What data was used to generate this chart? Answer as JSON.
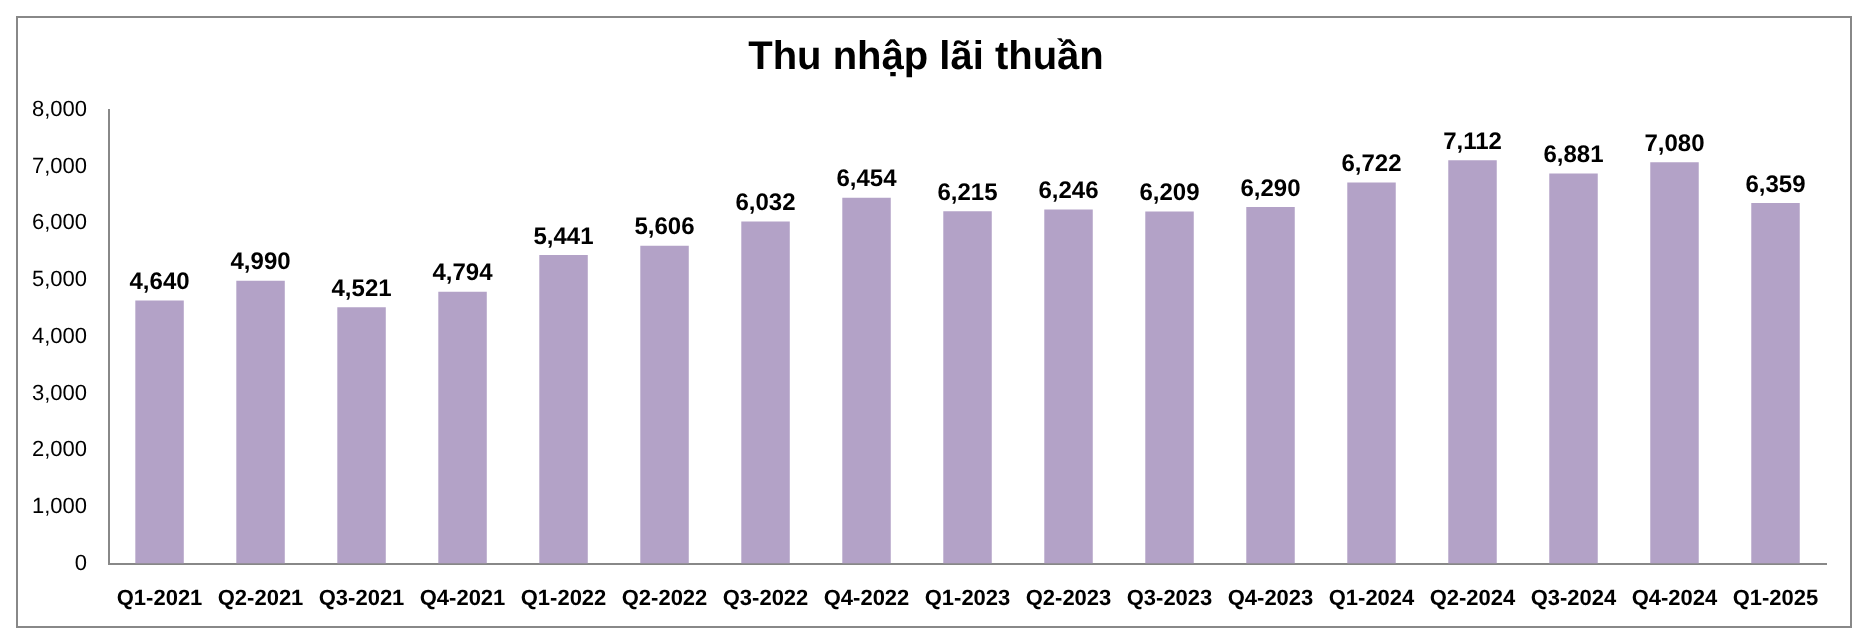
{
  "chart_data": {
    "type": "bar",
    "title": "Thu nhập lãi thuần",
    "categories": [
      "Q1-2021",
      "Q2-2021",
      "Q3-2021",
      "Q4-2021",
      "Q1-2022",
      "Q2-2022",
      "Q3-2022",
      "Q4-2022",
      "Q1-2023",
      "Q2-2023",
      "Q3-2023",
      "Q4-2023",
      "Q1-2024",
      "Q2-2024",
      "Q3-2024",
      "Q4-2024",
      "Q1-2025"
    ],
    "values": [
      4640,
      4990,
      4521,
      4794,
      5441,
      5606,
      6032,
      6454,
      6215,
      6246,
      6209,
      6290,
      6722,
      7112,
      6881,
      7080,
      6359
    ],
    "value_labels": [
      "4,640",
      "4,990",
      "4,521",
      "4,794",
      "5,441",
      "5,606",
      "6,032",
      "6,454",
      "6,215",
      "6,246",
      "6,209",
      "6,290",
      "6,722",
      "7,112",
      "6,881",
      "7,080",
      "6,359"
    ],
    "color": "#b3a2c7",
    "ylim": [
      0,
      8000
    ],
    "yticks": [
      {
        "value": 0,
        "label": "0"
      },
      {
        "value": 1000,
        "label": "1,000"
      },
      {
        "value": 2000,
        "label": "2,000"
      },
      {
        "value": 3000,
        "label": "3,000"
      },
      {
        "value": 4000,
        "label": "4,000"
      },
      {
        "value": 5000,
        "label": "5,000"
      },
      {
        "value": 6000,
        "label": "6,000"
      },
      {
        "value": 7000,
        "label": "7,000"
      },
      {
        "value": 8000,
        "label": "8,000"
      }
    ],
    "grid": false,
    "legend": false
  }
}
